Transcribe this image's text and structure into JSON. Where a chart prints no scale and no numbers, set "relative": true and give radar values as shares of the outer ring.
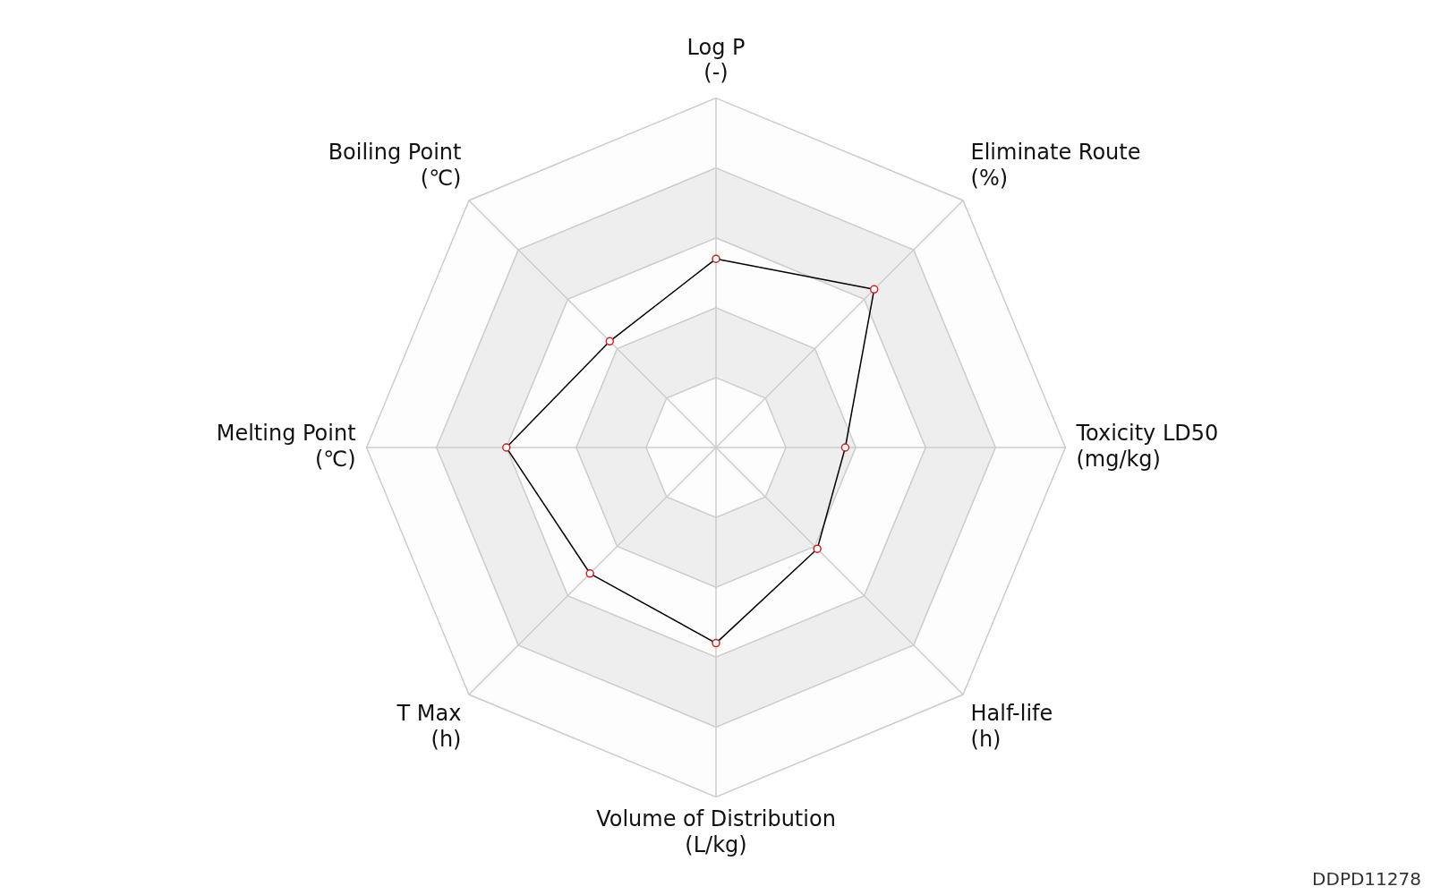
{
  "chart_data": {
    "type": "radar",
    "relative": true,
    "marker": "circle",
    "grid": true,
    "legend": false,
    "categories": [
      "Log P\n(-)",
      "Eliminate Route\n(%)",
      "Toxicity LD50\n(mg/kg)",
      "Half-life\n(h)",
      "Volume of Distribution\n(L/kg)",
      "T Max\n(h)",
      "Melting Point\n(℃)",
      "Boiling Point\n(℃)"
    ],
    "series": [
      {
        "color": "#000000",
        "values": [
          0.54,
          0.64,
          0.37,
          0.41,
          0.56,
          0.51,
          0.6,
          0.43
        ]
      }
    ],
    "annotations": [
      "DDPD11278"
    ]
  }
}
